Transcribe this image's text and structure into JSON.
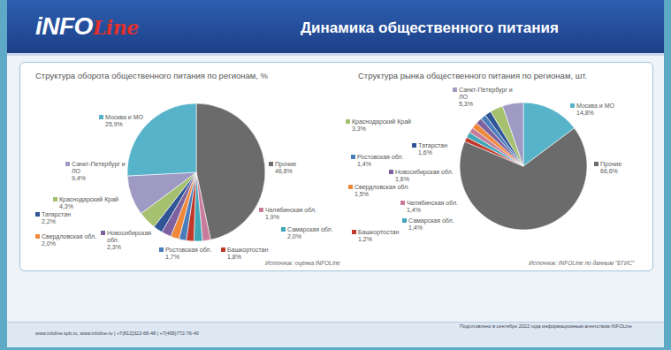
{
  "header": {
    "logo": {
      "main": "iNFO",
      "accent": "Line"
    },
    "title": "Динамика общественного питания"
  },
  "chart_data": [
    {
      "type": "pie",
      "title": "Структура оборота общественного питания по регионам, %",
      "categories": [
        "Прочие",
        "Челябинская обл.",
        "Самарская обл.",
        "Башкортостан",
        "Ростовская обл.",
        "Свердловская обл.",
        "Новосибирская обл.",
        "Татарстан",
        "Краснодарский Край",
        "Санкт-Петербург и ЛО",
        "Москва и МО"
      ],
      "values": [
        46.8,
        1.9,
        2.0,
        1.8,
        1.7,
        2.0,
        2.3,
        2.2,
        4.3,
        9.4,
        25.9
      ],
      "value_labels": [
        "46,8%",
        "1,9%",
        "2,0%",
        "1,8%",
        "1,7%",
        "2,0%",
        "2,3%",
        "2,2%",
        "4,3%",
        "9,4%",
        "25,9%"
      ],
      "colors": [
        "#6b6b6b",
        "#c77c9b",
        "#3fa7b8",
        "#c0392b",
        "#4a7ebb",
        "#f0883a",
        "#7e62a0",
        "#2f5597",
        "#a5c06f",
        "#9f9ac4",
        "#56b3c9"
      ],
      "data_labels": true,
      "annotation": "Источник: оценка INFOLine"
    },
    {
      "type": "pie",
      "title": "Структура рынка общественного питания по регионам, шт.",
      "categories": [
        "Москва и МО",
        "Прочие",
        "Башкортостан",
        "Самарская обл.",
        "Челябинская обл.",
        "Свердловская обл.",
        "Новосибирская обл.",
        "Ростовская обл.",
        "Татарстан",
        "Краснодарский Край",
        "Санкт-Петербург и ЛО"
      ],
      "values": [
        14.8,
        66.6,
        1.2,
        1.4,
        1.4,
        1.5,
        1.6,
        1.4,
        1.6,
        3.3,
        5.3
      ],
      "value_labels": [
        "14,8%",
        "66,6%",
        "1,2%",
        "1,4%",
        "1,4%",
        "1,5%",
        "1,6%",
        "1,4%",
        "1,6%",
        "3,3%",
        "5,3%"
      ],
      "colors": [
        "#56b3c9",
        "#6b6b6b",
        "#c0392b",
        "#3fa7b8",
        "#c77c9b",
        "#f0883a",
        "#7e62a0",
        "#4a7ebb",
        "#2f5597",
        "#a5c06f",
        "#9f9ac4"
      ],
      "data_labels": true,
      "annotation": "Источник: INFOLine по данным \"ЕГИС\""
    }
  ],
  "footer": {
    "contacts": "www.infoline.spb.ru, www.infoline.ru | +7(812)322-68-48 | +7(495)772-76-40",
    "note": "Подготовлено в сентябре 2022 года информационным агентством INFOLine"
  }
}
